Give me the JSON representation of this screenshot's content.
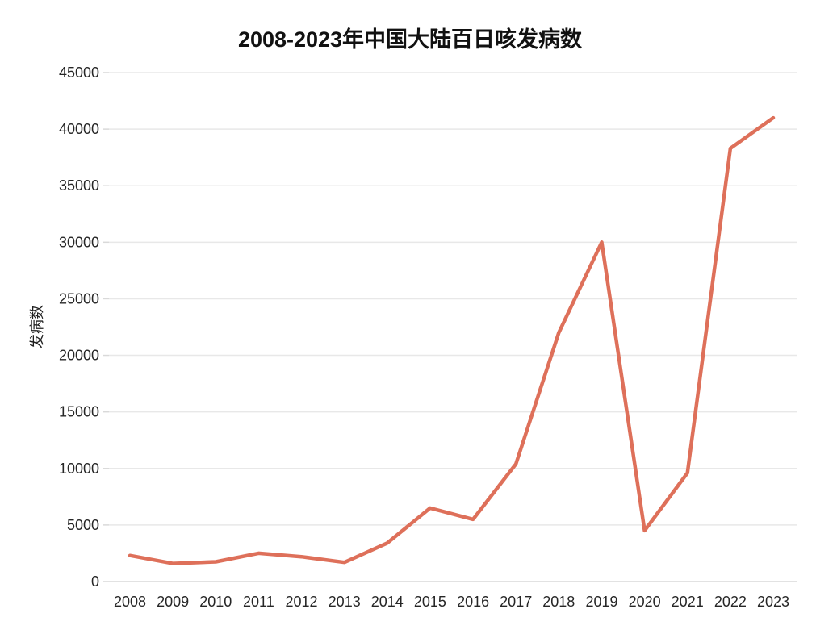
{
  "chart_data": {
    "type": "line",
    "title": "2008-2023年中国大陆百日咳发病数",
    "ylabel": "发病数",
    "xlabel": "",
    "categories": [
      "2008",
      "2009",
      "2010",
      "2011",
      "2012",
      "2013",
      "2014",
      "2015",
      "2016",
      "2017",
      "2018",
      "2019",
      "2020",
      "2021",
      "2022",
      "2023"
    ],
    "values": [
      2300,
      1600,
      1750,
      2500,
      2200,
      1700,
      3400,
      6500,
      5500,
      10400,
      22000,
      30000,
      4500,
      9600,
      38300,
      41000
    ],
    "series_name": "发病数",
    "ylim": [
      0,
      45000
    ],
    "yticks": [
      0,
      5000,
      10000,
      15000,
      20000,
      25000,
      30000,
      35000,
      40000,
      45000
    ],
    "ytick_labels": [
      "0",
      "5000",
      "10000",
      "15000",
      "20000",
      "25000",
      "30000",
      "35000",
      "40000",
      "45000"
    ],
    "grid": "horizontal-only",
    "legend_position": "none",
    "markers": "none",
    "colors": {
      "line": "#de705a",
      "grid": "#e8e8e8",
      "axis": "#d9d9d9",
      "text": "#262626",
      "title": "#111111",
      "background": "#ffffff"
    }
  }
}
